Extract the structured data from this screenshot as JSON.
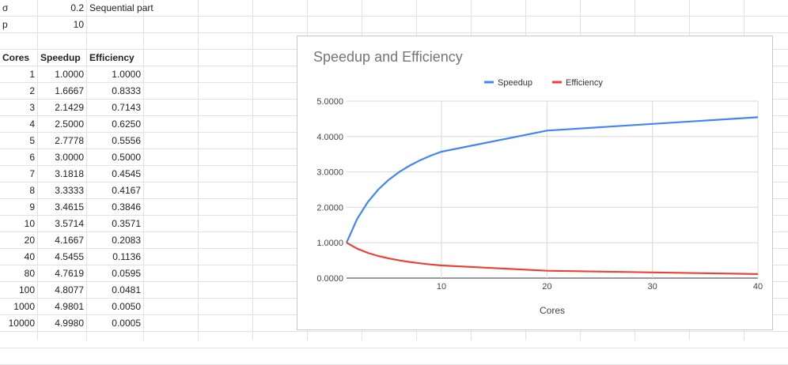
{
  "params": [
    {
      "label": "σ",
      "value": "0.2",
      "note": "Sequential part"
    },
    {
      "label": "p",
      "value": "10",
      "note": ""
    }
  ],
  "table": {
    "headers": [
      "Cores",
      "Speedup",
      "Efficiency"
    ],
    "rows": [
      [
        "1",
        "1.0000",
        "1.0000"
      ],
      [
        "2",
        "1.6667",
        "0.8333"
      ],
      [
        "3",
        "2.1429",
        "0.7143"
      ],
      [
        "4",
        "2.5000",
        "0.6250"
      ],
      [
        "5",
        "2.7778",
        "0.5556"
      ],
      [
        "6",
        "3.0000",
        "0.5000"
      ],
      [
        "7",
        "3.1818",
        "0.4545"
      ],
      [
        "8",
        "3.3333",
        "0.4167"
      ],
      [
        "9",
        "3.4615",
        "0.3846"
      ],
      [
        "10",
        "3.5714",
        "0.3571"
      ],
      [
        "20",
        "4.1667",
        "0.2083"
      ],
      [
        "40",
        "4.5455",
        "0.1136"
      ],
      [
        "80",
        "4.7619",
        "0.0595"
      ],
      [
        "100",
        "4.8077",
        "0.0481"
      ],
      [
        "1000",
        "4.9801",
        "0.0050"
      ],
      [
        "10000",
        "4.9980",
        "0.0005"
      ]
    ]
  },
  "chart_data": {
    "type": "line",
    "title": "Speedup and Efficiency",
    "xlabel": "Cores",
    "ylabel": "",
    "x": [
      1,
      2,
      3,
      4,
      5,
      6,
      7,
      8,
      9,
      10,
      20,
      40
    ],
    "xlim": [
      1,
      40
    ],
    "ylim": [
      0,
      5
    ],
    "xticks": [
      10,
      20,
      30,
      40
    ],
    "yticks": [
      "0.0000",
      "1.0000",
      "2.0000",
      "3.0000",
      "4.0000",
      "5.0000"
    ],
    "legend_position": "top",
    "grid": true,
    "series": [
      {
        "name": "Speedup",
        "color": "#4285f4",
        "values": [
          1.0,
          1.6667,
          2.1429,
          2.5,
          2.7778,
          3.0,
          3.1818,
          3.3333,
          3.4615,
          3.5714,
          4.1667,
          4.5455
        ]
      },
      {
        "name": "Efficiency",
        "color": "#ea4335",
        "values": [
          1.0,
          0.8333,
          0.7143,
          0.625,
          0.5556,
          0.5,
          0.4545,
          0.4167,
          0.3846,
          0.3571,
          0.2083,
          0.1136
        ]
      }
    ]
  }
}
